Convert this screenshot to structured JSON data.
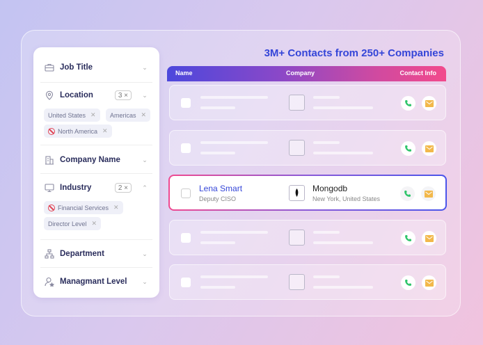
{
  "headline": "3M+ Contacts from 250+ Companies",
  "filters": [
    {
      "label": "Job Title",
      "icon": "briefcase-icon"
    },
    {
      "label": "Location",
      "icon": "location-pin-icon",
      "count": "3",
      "chips": [
        {
          "text": "United States",
          "excluded": false
        },
        {
          "text": "Americas",
          "excluded": false
        },
        {
          "text": "North America",
          "excluded": true
        }
      ]
    },
    {
      "label": "Company Name",
      "icon": "building-icon"
    },
    {
      "label": "Industry",
      "icon": "monitor-icon",
      "count": "2",
      "expanded": true,
      "chips": [
        {
          "text": "Financial Services",
          "excluded": true
        },
        {
          "text": "Director Level",
          "excluded": false
        }
      ]
    },
    {
      "label": "Department",
      "icon": "org-chart-icon"
    },
    {
      "label": "Managmant Level",
      "icon": "user-star-icon"
    }
  ],
  "table": {
    "columns": [
      "Name",
      "Company",
      "Contact Info"
    ],
    "highlighted": {
      "name": "Lena Smart",
      "title": "Deputy CISO",
      "company": "Mongodb",
      "location": "New York, United States"
    }
  },
  "colors": {
    "accent": "#3445d8",
    "phone": "#2ec46a",
    "email": "#f2b84b",
    "exclude": "#e04556"
  }
}
